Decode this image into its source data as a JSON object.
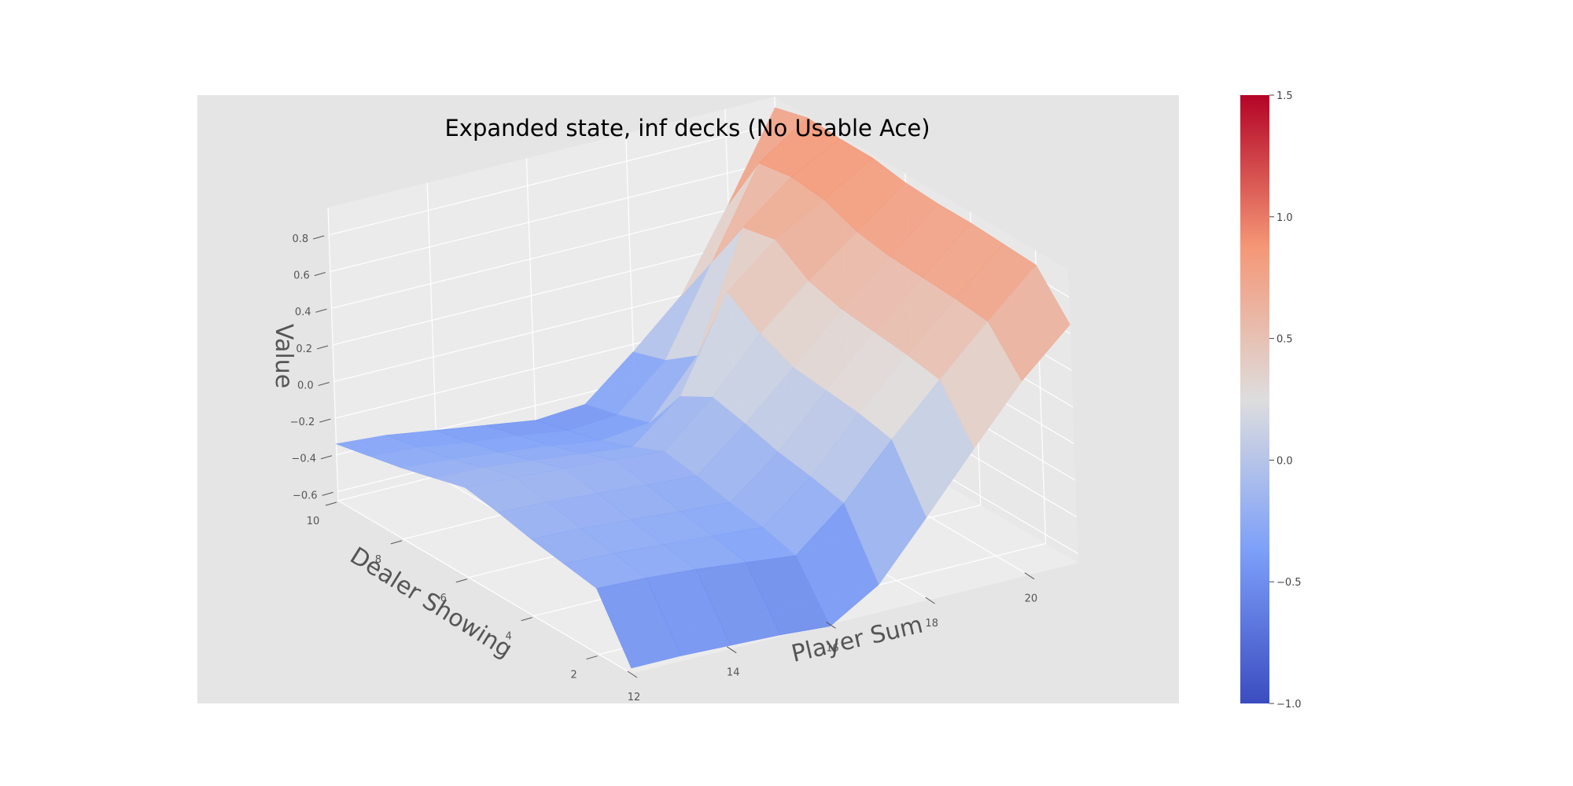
{
  "chart_data": {
    "type": "surface3d",
    "title": "Expanded state, inf decks (No Usable Ace)",
    "xlabel": "Player Sum",
    "ylabel": "Dealer Showing",
    "zlabel": "Value",
    "x": [
      12,
      13,
      14,
      15,
      16,
      17,
      18,
      19,
      20,
      21
    ],
    "y": [
      1,
      2,
      3,
      4,
      5,
      6,
      7,
      8,
      9,
      10
    ],
    "x_ticks": [
      "12",
      "14",
      "16",
      "18",
      "20"
    ],
    "y_ticks": [
      "2",
      "4",
      "6",
      "8",
      "10"
    ],
    "z_ticks": [
      "−0.6",
      "−0.4",
      "−0.2",
      "0.0",
      "0.2",
      "0.4",
      "0.6",
      "0.8"
    ],
    "x_tick_values": [
      12,
      14,
      16,
      18,
      20
    ],
    "y_tick_values": [
      2,
      4,
      6,
      8,
      10
    ],
    "z_tick_values": [
      -0.6,
      -0.4,
      -0.2,
      0.0,
      0.2,
      0.4,
      0.6,
      0.8
    ],
    "xlim": [
      12,
      21
    ],
    "ylim": [
      1,
      10
    ],
    "zlim": [
      -0.65,
      0.95
    ],
    "z": [
      [
        -0.62,
        -0.62,
        -0.63,
        -0.64,
        -0.66,
        -0.5,
        -0.2,
        0.11,
        0.41,
        0.65
      ],
      [
        -0.29,
        -0.3,
        -0.32,
        -0.35,
        -0.38,
        -0.16,
        0.12,
        0.38,
        0.63,
        0.87
      ],
      [
        -0.26,
        -0.27,
        -0.29,
        -0.31,
        -0.33,
        -0.12,
        0.16,
        0.41,
        0.65,
        0.88
      ],
      [
        -0.23,
        -0.24,
        -0.26,
        -0.28,
        -0.3,
        -0.09,
        0.18,
        0.43,
        0.66,
        0.89
      ],
      [
        -0.19,
        -0.2,
        -0.22,
        -0.24,
        -0.26,
        -0.04,
        0.2,
        0.45,
        0.67,
        0.89
      ],
      [
        -0.16,
        -0.17,
        -0.19,
        -0.21,
        -0.23,
        0.0,
        0.28,
        0.5,
        0.7,
        0.9
      ],
      [
        -0.21,
        -0.22,
        -0.25,
        -0.28,
        -0.31,
        -0.1,
        0.4,
        0.62,
        0.77,
        0.93
      ],
      [
        -0.26,
        -0.28,
        -0.31,
        -0.34,
        -0.38,
        -0.35,
        -0.05,
        0.58,
        0.79,
        0.93
      ],
      [
        -0.3,
        -0.32,
        -0.36,
        -0.39,
        -0.43,
        -0.41,
        -0.18,
        0.29,
        0.76,
        0.94
      ],
      [
        -0.34,
        -0.36,
        -0.4,
        -0.44,
        -0.48,
        -0.46,
        -0.24,
        0.0,
        0.43,
        0.89
      ]
    ],
    "colorbar": {
      "colormap": "coolwarm",
      "range": [
        -1.0,
        1.5
      ],
      "tick_values": [
        -1.0,
        -0.5,
        0.0,
        0.5,
        1.0,
        1.5
      ],
      "tick_labels": [
        "−1.0",
        "−0.5",
        "0.0",
        "0.5",
        "1.0",
        "1.5"
      ]
    },
    "pane_color": "#e5e5e5",
    "grid": true
  }
}
